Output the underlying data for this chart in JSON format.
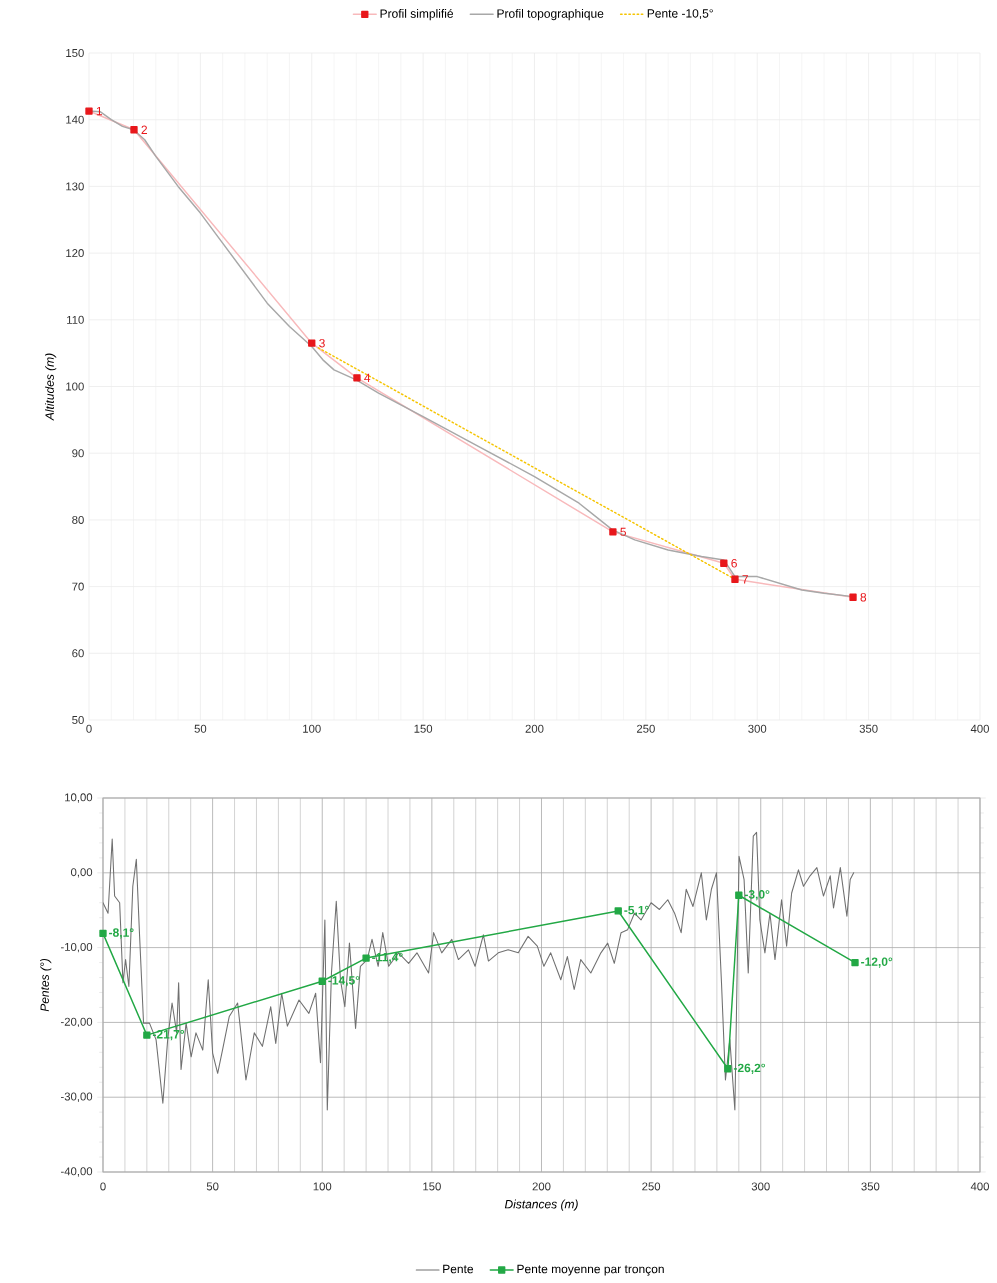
{
  "chart_data": [
    {
      "type": "line",
      "ylabel": "Altitudes (m)",
      "xlim": [
        0,
        400
      ],
      "ylim": [
        50,
        150
      ],
      "xticks": [
        0,
        50,
        100,
        150,
        200,
        250,
        300,
        350,
        400
      ],
      "yticks": [
        50,
        60,
        70,
        80,
        90,
        100,
        110,
        120,
        130,
        140,
        150
      ],
      "grid": true,
      "legend": "top",
      "annotations": [
        {
          "text": "1",
          "x": 0,
          "y": 141.3
        },
        {
          "text": "2",
          "x": 20.2,
          "y": 138.5
        },
        {
          "text": "3",
          "x": 100,
          "y": 106.5
        },
        {
          "text": "4",
          "x": 120.3,
          "y": 101.3
        },
        {
          "text": "5",
          "x": 235.2,
          "y": 78.2
        },
        {
          "text": "6",
          "x": 285,
          "y": 73.5
        },
        {
          "text": "7",
          "x": 290,
          "y": 71.1
        },
        {
          "text": "8",
          "x": 343,
          "y": 68.4
        }
      ],
      "series": [
        {
          "name": "Profil simplifié",
          "color": "#e8171b",
          "marker": "square",
          "line_style": "solid",
          "x": [
            0,
            20.2,
            100,
            120.3,
            235.2,
            285,
            290,
            343
          ],
          "values": [
            141.3,
            138.5,
            106.5,
            101.3,
            78.2,
            73.5,
            71.1,
            68.4
          ]
        },
        {
          "name": "Profil topographique",
          "color": "#a8a8a8",
          "marker": "none",
          "line_style": "solid",
          "x": [
            0,
            5,
            10,
            15,
            20,
            25,
            30,
            40,
            50,
            60,
            70,
            80,
            90,
            100,
            105,
            110,
            120,
            130,
            150,
            175,
            200,
            220,
            235,
            245,
            260,
            275,
            285,
            288,
            290,
            300,
            310,
            320,
            330,
            343
          ],
          "values": [
            141.3,
            141.2,
            140,
            139,
            138.5,
            137,
            134.5,
            130,
            126,
            121.5,
            117,
            112.5,
            109,
            106,
            104,
            102.5,
            101,
            99,
            95.5,
            91,
            86.5,
            82.5,
            78.5,
            77,
            75.5,
            74.5,
            74,
            72.5,
            71.5,
            71.5,
            70.5,
            69.5,
            69,
            68.5
          ]
        },
        {
          "name": "Pente -10,5°",
          "color": "#f5c400",
          "marker": "none",
          "line_style": "dotted",
          "x": [
            103,
            290
          ],
          "values": [
            105.8,
            71.1
          ]
        }
      ]
    },
    {
      "type": "line",
      "xlabel": "Distances (m)",
      "ylabel": "Pentes (°)",
      "xlim": [
        0,
        400
      ],
      "ylim": [
        -40,
        10
      ],
      "xticks": [
        0,
        50,
        100,
        150,
        200,
        250,
        300,
        350,
        400
      ],
      "yticks": [
        {
          "value": -40,
          "label": "-40,00"
        },
        {
          "value": -30,
          "label": "-30,00"
        },
        {
          "value": -20,
          "label": "-20,00"
        },
        {
          "value": -10,
          "label": "-10,00"
        },
        {
          "value": 0,
          "label": "0,00"
        },
        {
          "value": 10,
          "label": "10,00"
        }
      ],
      "grid": true,
      "legend": "bottom",
      "series": [
        {
          "name": "Pente",
          "color": "#707070",
          "marker": "none",
          "line_style": "solid",
          "x": [
            0,
            2.3,
            4.2,
            5.3,
            7.6,
            9.1,
            10.3,
            11.8,
            13.6,
            15.2,
            16.7,
            18.5,
            21.2,
            24.2,
            27.3,
            29.5,
            31.5,
            33.6,
            34.5,
            35.6,
            37.9,
            40.2,
            42.4,
            45.5,
            48.0,
            50.0,
            52.3,
            54.5,
            57.6,
            61.4,
            65.2,
            69.0,
            72.7,
            76.5,
            78.8,
            81.5,
            84.1,
            89.4,
            93.9,
            97.0,
            99.2,
            101.2,
            102.3,
            104.2,
            106.4,
            108.3,
            110.3,
            112.4,
            115.2,
            117.4,
            120.5,
            122.7,
            125.5,
            127.6,
            130.3,
            134.8,
            139.4,
            143.2,
            148.5,
            150.8,
            154.5,
            159.1,
            162.1,
            166.7,
            169.7,
            173.5,
            175.8,
            180.3,
            184.8,
            189.4,
            193.9,
            198.1,
            201.1,
            204.2,
            208.8,
            211.8,
            214.9,
            217.9,
            222.5,
            227.1,
            230.2,
            233.2,
            236.3,
            239.3,
            242.4,
            245.4,
            250.0,
            253.8,
            257.6,
            260.7,
            263.7,
            266.0,
            269.1,
            272.9,
            275.2,
            277.5,
            279.8,
            282.1,
            283.9,
            285.9,
            288.2,
            290.1,
            292.4,
            294.3,
            296.6,
            298.1,
            299.6,
            301.9,
            304.2,
            306.5,
            309.5,
            311.8,
            314.1,
            317.2,
            319.5,
            322.5,
            325.6,
            328.6,
            331.7,
            333.2,
            336.3,
            339.3,
            340.8,
            342.4
          ],
          "values": [
            -4.0,
            -5.4,
            4.5,
            -3.1,
            -4.0,
            -14.7,
            -11.6,
            -15.2,
            -1.8,
            1.8,
            -8.5,
            -20.1,
            -20.1,
            -22.3,
            -30.8,
            -22.3,
            -17.4,
            -21.4,
            -14.7,
            -26.3,
            -20.1,
            -24.6,
            -21.4,
            -23.7,
            -14.3,
            -24.1,
            -26.8,
            -23.7,
            -19.2,
            -17.4,
            -27.7,
            -21.4,
            -23.2,
            -17.9,
            -22.8,
            -16.1,
            -20.5,
            -17.0,
            -18.8,
            -16.1,
            -25.4,
            -6.3,
            -31.7,
            -13.4,
            -3.8,
            -14.3,
            -17.9,
            -9.4,
            -20.8,
            -12.5,
            -11.6,
            -8.9,
            -12.5,
            -8.0,
            -12.5,
            -10.7,
            -12.1,
            -10.7,
            -13.4,
            -8.0,
            -10.7,
            -8.9,
            -11.6,
            -10.3,
            -12.5,
            -8.3,
            -11.8,
            -10.7,
            -10.3,
            -10.7,
            -8.5,
            -9.8,
            -12.5,
            -10.7,
            -14.3,
            -11.2,
            -15.6,
            -11.6,
            -13.4,
            -10.7,
            -9.4,
            -12.1,
            -8.0,
            -7.6,
            -5.4,
            -6.3,
            -4.0,
            -4.9,
            -3.6,
            -5.4,
            -8.0,
            -2.2,
            -4.5,
            0.0,
            -6.3,
            -2.2,
            0.0,
            -14.7,
            -27.7,
            -22.3,
            -31.7,
            2.2,
            -0.9,
            -13.4,
            4.9,
            5.4,
            -6.3,
            -10.7,
            -5.4,
            -11.6,
            -3.6,
            -9.8,
            -2.7,
            0.4,
            -1.8,
            -0.4,
            0.7,
            -3.1,
            -0.4,
            -4.7,
            0.7,
            -5.8,
            -0.9,
            0.0
          ]
        },
        {
          "name": "Pente moyenne par tronçon",
          "color": "#22a845",
          "marker": "square",
          "line_style": "solid",
          "x": [
            0,
            20,
            100,
            120,
            235,
            285,
            290,
            343
          ],
          "values": [
            -8.1,
            -21.7,
            -14.5,
            -11.4,
            -5.1,
            -26.2,
            -3.0,
            -12.0
          ],
          "value_labels": [
            "-8,1°",
            "-21,7°",
            "-14,5°",
            "-11,4°",
            "-5,1°",
            "-26,2°",
            "-3,0°",
            "-12,0°"
          ]
        }
      ]
    }
  ]
}
